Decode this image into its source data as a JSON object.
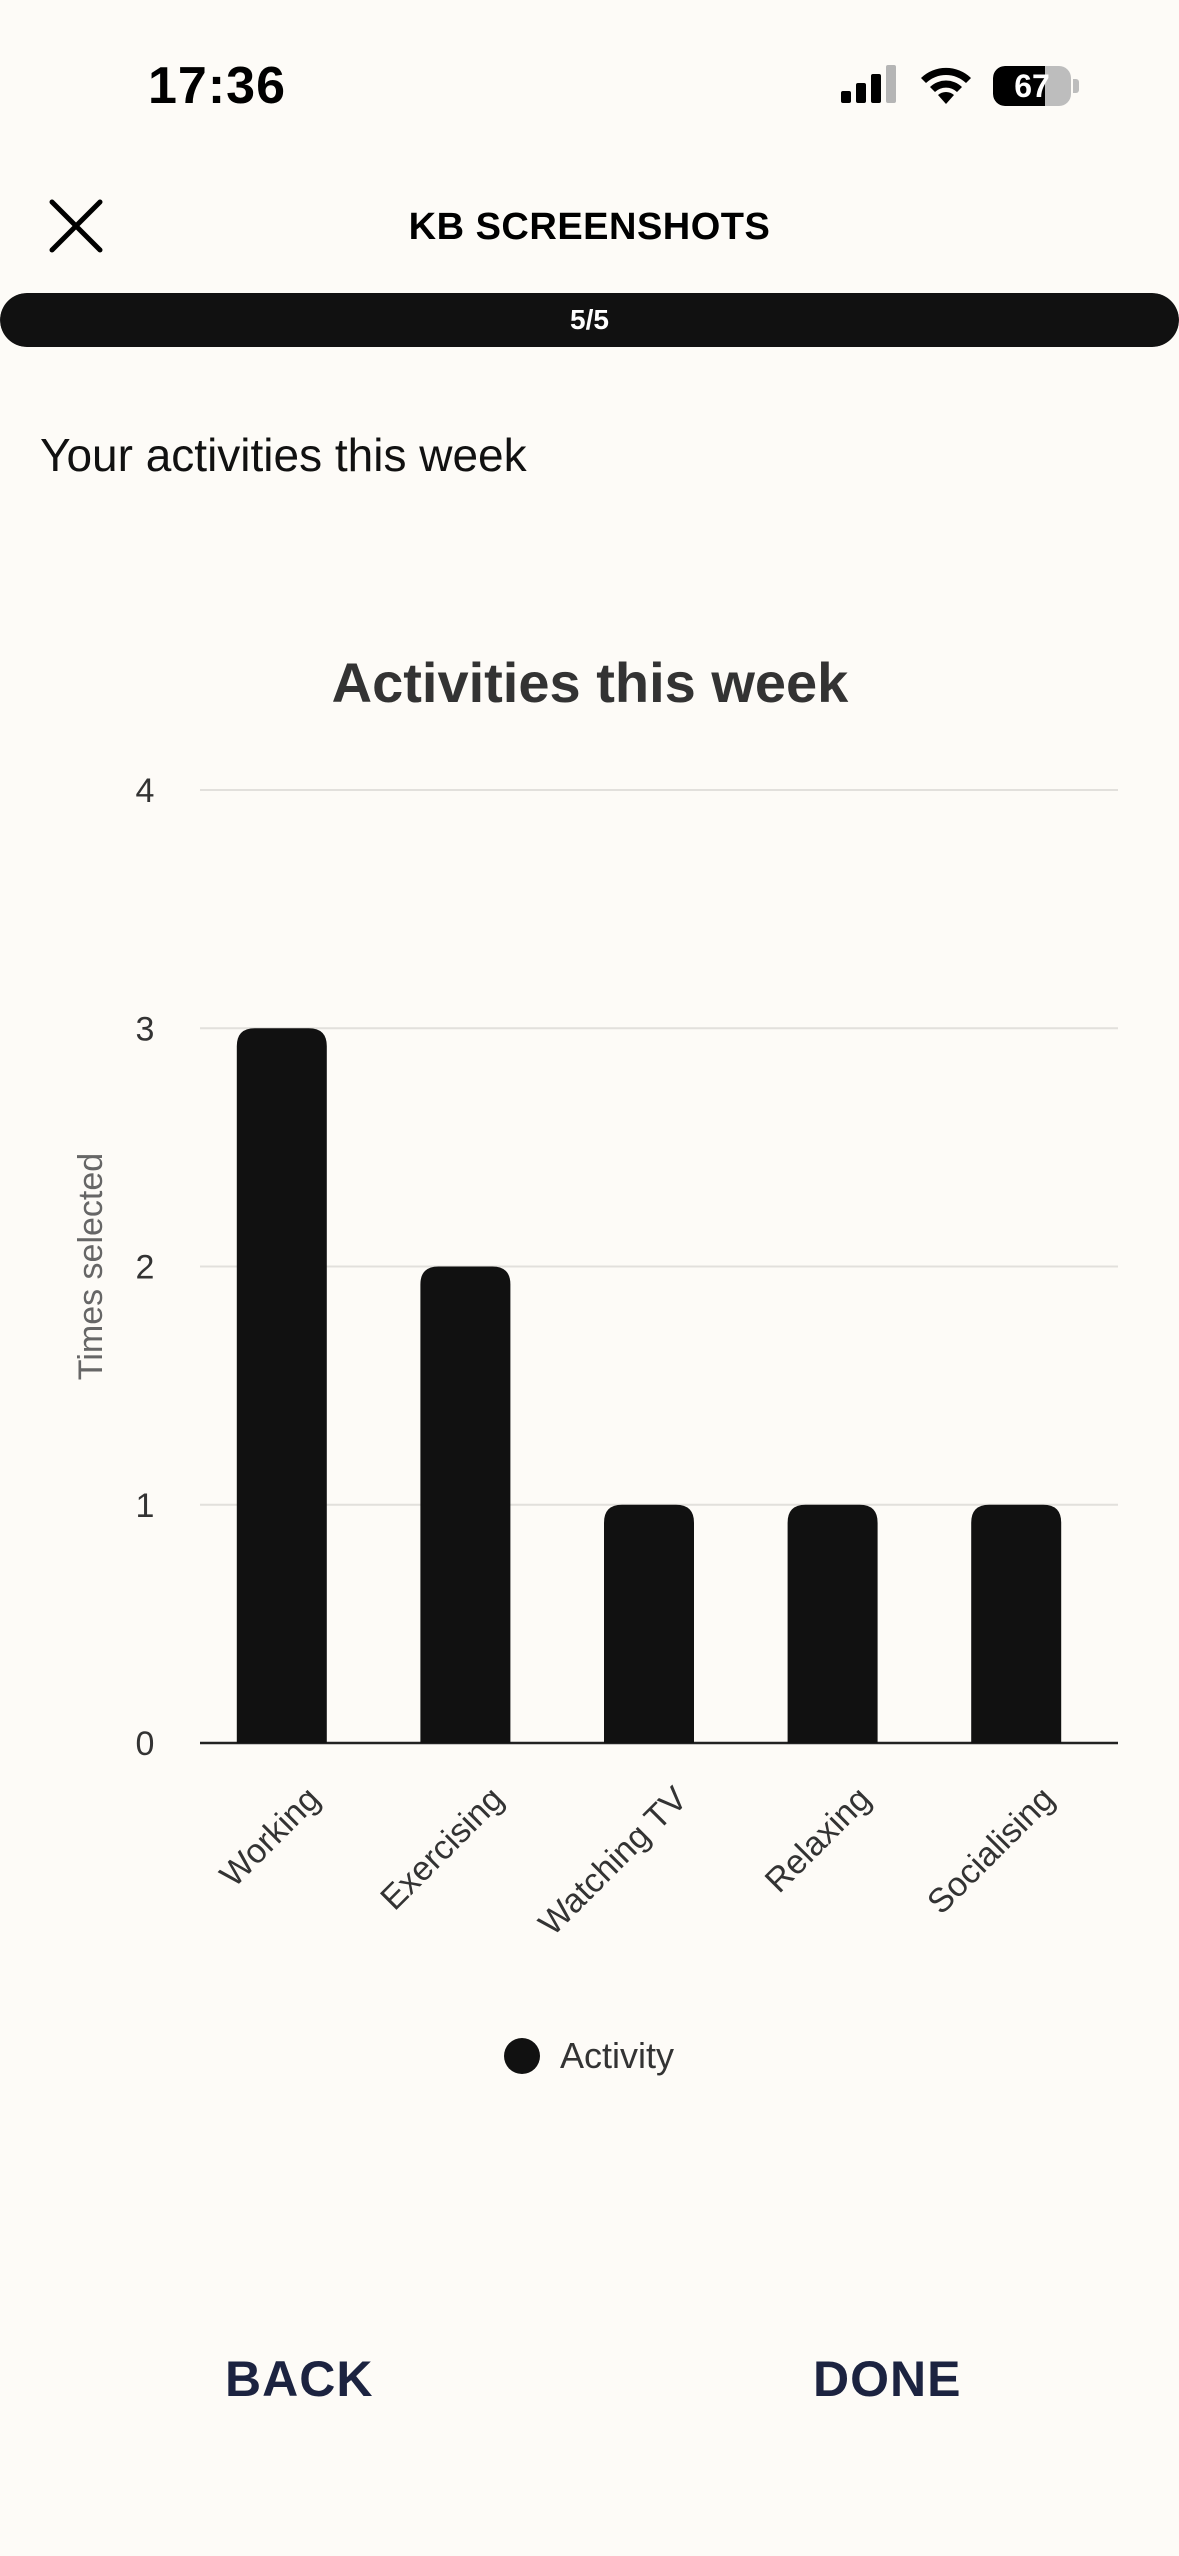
{
  "status_bar": {
    "time": "17:36",
    "battery": "67",
    "battery_level": 0.67,
    "icons": [
      "cellular-signal-icon",
      "wifi-icon",
      "battery-icon"
    ]
  },
  "header": {
    "title": "KB SCREENSHOTS",
    "close_icon": "close-icon"
  },
  "progress": {
    "label": "5/5",
    "value": 1.0
  },
  "page": {
    "heading": "Your activities this week"
  },
  "chart_data": {
    "type": "bar",
    "title": "Activities this week",
    "xlabel": "",
    "ylabel": "Times selected",
    "categories": [
      "Working",
      "Exercising",
      "Watching TV",
      "Relaxing",
      "Socialising"
    ],
    "series": [
      {
        "name": "Activity",
        "values": [
          3,
          2,
          1,
          1,
          1
        ],
        "color": "#111111"
      }
    ],
    "ylim": [
      0,
      4
    ],
    "yticks": [
      "0",
      "1",
      "2",
      "3",
      "4"
    ],
    "grid": true,
    "legend": "bottom-center"
  },
  "footer": {
    "back_label": "BACK",
    "done_label": "DONE"
  },
  "colors": {
    "background": "#fdfbf7",
    "bar": "#111111",
    "button_text": "#1c2340"
  }
}
